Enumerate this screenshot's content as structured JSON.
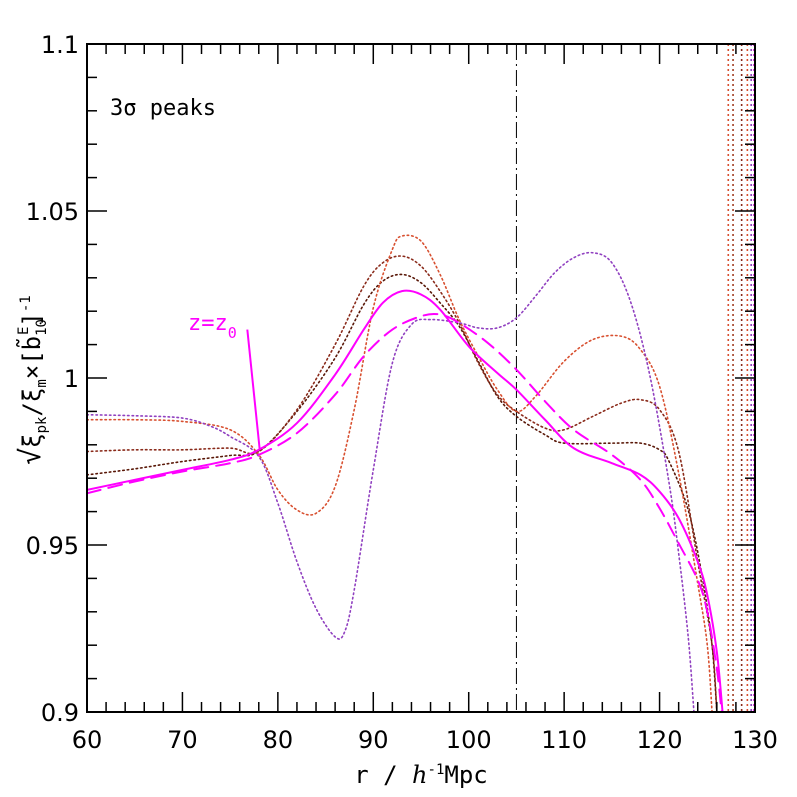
{
  "chart_data": {
    "type": "line",
    "xlabel": "r / h⁻¹Mpc",
    "ylabel": "√ξ_pk/ξ_m × [b̃₁₀ᴱ]⁻¹",
    "xlim": [
      60,
      130
    ],
    "ylim": [
      0.9,
      1.1
    ],
    "xticks": [
      60,
      70,
      80,
      90,
      100,
      110,
      120,
      130
    ],
    "xtick_labels": [
      "60",
      "70",
      "80",
      "90",
      "100",
      "110",
      "120",
      "130"
    ],
    "yticks": [
      0.9,
      0.95,
      1.0,
      1.05,
      1.1
    ],
    "ytick_labels": [
      "0.9",
      "0.95",
      "1",
      "1.05",
      "1.1"
    ],
    "annotations": {
      "peaks_label": "3σ peaks",
      "z_label": "z=z",
      "z_label_sub": "0",
      "z_arrow_from": [
        76.8,
        1.0145
      ],
      "z_arrow_to": [
        78.1,
        0.9785
      ]
    },
    "vline": {
      "x": 105,
      "color": "#000000",
      "style": "dash-dot"
    },
    "vlines_right": [
      {
        "x": 127.2,
        "color": "#d85030"
      },
      {
        "x": 127.7,
        "color": "#a03c20"
      },
      {
        "x": 128.6,
        "color": "#8a2a1a"
      },
      {
        "x": 129.2,
        "color": "#d85030"
      },
      {
        "x": 129.6,
        "color": "#9040c0"
      },
      {
        "x": 129.9,
        "color": "#e000e0"
      }
    ],
    "series": [
      {
        "color": "#ff00ff",
        "style": "solid",
        "width": 2,
        "points": [
          [
            60,
            0.9665
          ],
          [
            65,
            0.9695
          ],
          [
            70,
            0.9725
          ],
          [
            75,
            0.9755
          ],
          [
            78,
            0.9785
          ],
          [
            82,
            0.9865
          ],
          [
            86,
            1.001
          ],
          [
            89,
            1.0145
          ],
          [
            91,
            1.0225
          ],
          [
            93,
            1.026
          ],
          [
            95,
            1.025
          ],
          [
            97,
            1.0205
          ],
          [
            100,
            1.0095
          ],
          [
            103,
            1.0015
          ],
          [
            105,
            0.9965
          ],
          [
            108,
            0.9875
          ],
          [
            111,
            0.979
          ],
          [
            115,
            0.9745
          ],
          [
            118,
            0.971
          ],
          [
            120,
            0.966
          ],
          [
            122,
            0.958
          ],
          [
            124,
            0.945
          ],
          [
            125,
            0.935
          ],
          [
            126,
            0.918
          ],
          [
            126.6,
            0.9
          ]
        ]
      },
      {
        "color": "#ff00ff",
        "style": "dashed",
        "width": 2,
        "points": [
          [
            60,
            0.9655
          ],
          [
            65,
            0.969
          ],
          [
            70,
            0.972
          ],
          [
            75,
            0.9745
          ],
          [
            78,
            0.977
          ],
          [
            82,
            0.9835
          ],
          [
            86,
            0.995
          ],
          [
            89,
            1.0065
          ],
          [
            92,
            1.0145
          ],
          [
            95,
            1.0185
          ],
          [
            97,
            1.019
          ],
          [
            99,
            1.0165
          ],
          [
            102,
            1.0105
          ],
          [
            105,
            1.0025
          ],
          [
            108,
            0.993
          ],
          [
            111,
            0.9845
          ],
          [
            115,
            0.977
          ],
          [
            118,
            0.9695
          ],
          [
            120,
            0.961
          ],
          [
            122,
            0.9505
          ],
          [
            124,
            0.9395
          ],
          [
            125,
            0.93
          ],
          [
            126,
            0.913
          ],
          [
            126.5,
            0.9
          ]
        ]
      },
      {
        "color": "#5a1808",
        "style": "dotted",
        "width": 1.6,
        "points": [
          [
            60,
            0.971
          ],
          [
            65,
            0.9728
          ],
          [
            70,
            0.975
          ],
          [
            75,
            0.9768
          ],
          [
            78,
            0.978
          ],
          [
            82,
            0.99
          ],
          [
            86,
            1.006
          ],
          [
            89,
            1.022
          ],
          [
            91,
            1.029
          ],
          [
            93,
            1.031
          ],
          [
            95,
            1.0285
          ],
          [
            97,
            1.0225
          ],
          [
            99,
            1.0155
          ],
          [
            101,
            1.005
          ],
          [
            103,
            0.9945
          ],
          [
            105,
            0.9885
          ],
          [
            108,
            0.983
          ],
          [
            110,
            0.9805
          ],
          [
            115,
            0.9805
          ],
          [
            118,
            0.9805
          ],
          [
            120,
            0.9785
          ],
          [
            121,
            0.975
          ],
          [
            123,
            0.9605
          ],
          [
            124.5,
            0.94
          ],
          [
            125.5,
            0.92
          ],
          [
            126,
            0.9
          ]
        ]
      },
      {
        "color": "#8a2a1a",
        "style": "dotted",
        "width": 1.6,
        "points": [
          [
            60,
            0.978
          ],
          [
            65,
            0.9785
          ],
          [
            70,
            0.9785
          ],
          [
            75,
            0.979
          ],
          [
            78,
            0.978
          ],
          [
            82,
            0.9905
          ],
          [
            86,
            1.01
          ],
          [
            89,
            1.0275
          ],
          [
            91,
            1.0345
          ],
          [
            93,
            1.0365
          ],
          [
            95,
            1.0335
          ],
          [
            97,
            1.026
          ],
          [
            99,
            1.0165
          ],
          [
            101,
            1.0045
          ],
          [
            103,
            0.995
          ],
          [
            105,
            0.99
          ],
          [
            108,
            0.985
          ],
          [
            110,
            0.9845
          ],
          [
            113,
            0.9885
          ],
          [
            116,
            0.9925
          ],
          [
            118,
            0.9935
          ],
          [
            120,
            0.9905
          ],
          [
            122,
            0.978
          ],
          [
            124,
            0.945
          ],
          [
            125.5,
            0.92
          ],
          [
            126,
            0.9
          ]
        ]
      },
      {
        "color": "#d85030",
        "style": "dotted",
        "width": 1.6,
        "points": [
          [
            60,
            0.9875
          ],
          [
            65,
            0.9875
          ],
          [
            70,
            0.987
          ],
          [
            75,
            0.9845
          ],
          [
            78,
            0.977
          ],
          [
            80,
            0.9665
          ],
          [
            82,
            0.9605
          ],
          [
            84,
            0.9595
          ],
          [
            86,
            0.9675
          ],
          [
            88,
            0.9905
          ],
          [
            90,
            1.021
          ],
          [
            92,
            1.0385
          ],
          [
            93,
            1.0425
          ],
          [
            95,
            1.041
          ],
          [
            97,
            1.031
          ],
          [
            99,
            1.0175
          ],
          [
            101,
            1.0065
          ],
          [
            103,
            0.9965
          ],
          [
            105,
            0.99
          ],
          [
            107,
            0.9945
          ],
          [
            110,
            1.005
          ],
          [
            113,
            1.0115
          ],
          [
            116,
            1.0125
          ],
          [
            118,
            1.0085
          ],
          [
            120,
            0.9975
          ],
          [
            122,
            0.9715
          ],
          [
            124,
            0.9385
          ],
          [
            125,
            0.92
          ],
          [
            125.5,
            0.9
          ]
        ]
      },
      {
        "color": "#9040c0",
        "style": "dotted",
        "width": 1.6,
        "points": [
          [
            60,
            0.989
          ],
          [
            65,
            0.9887
          ],
          [
            70,
            0.988
          ],
          [
            73,
            0.9855
          ],
          [
            75,
            0.9825
          ],
          [
            78,
            0.9765
          ],
          [
            80,
            0.9625
          ],
          [
            82,
            0.945
          ],
          [
            84,
            0.931
          ],
          [
            86,
            0.9225
          ],
          [
            87,
            0.924
          ],
          [
            88,
            0.9365
          ],
          [
            90,
            0.9725
          ],
          [
            92,
            1.0045
          ],
          [
            94,
            1.016
          ],
          [
            96,
            1.0175
          ],
          [
            99,
            1.0165
          ],
          [
            101,
            1.015
          ],
          [
            103,
            1.015
          ],
          [
            105,
            1.018
          ],
          [
            107,
            1.0245
          ],
          [
            109,
            1.0315
          ],
          [
            111,
            1.036
          ],
          [
            113,
            1.0375
          ],
          [
            115,
            1.0345
          ],
          [
            117,
            1.0225
          ],
          [
            119,
            1.0005
          ],
          [
            121,
            0.9685
          ],
          [
            122,
            0.9475
          ],
          [
            123,
            0.9225
          ],
          [
            123.6,
            0.9
          ]
        ]
      }
    ]
  }
}
